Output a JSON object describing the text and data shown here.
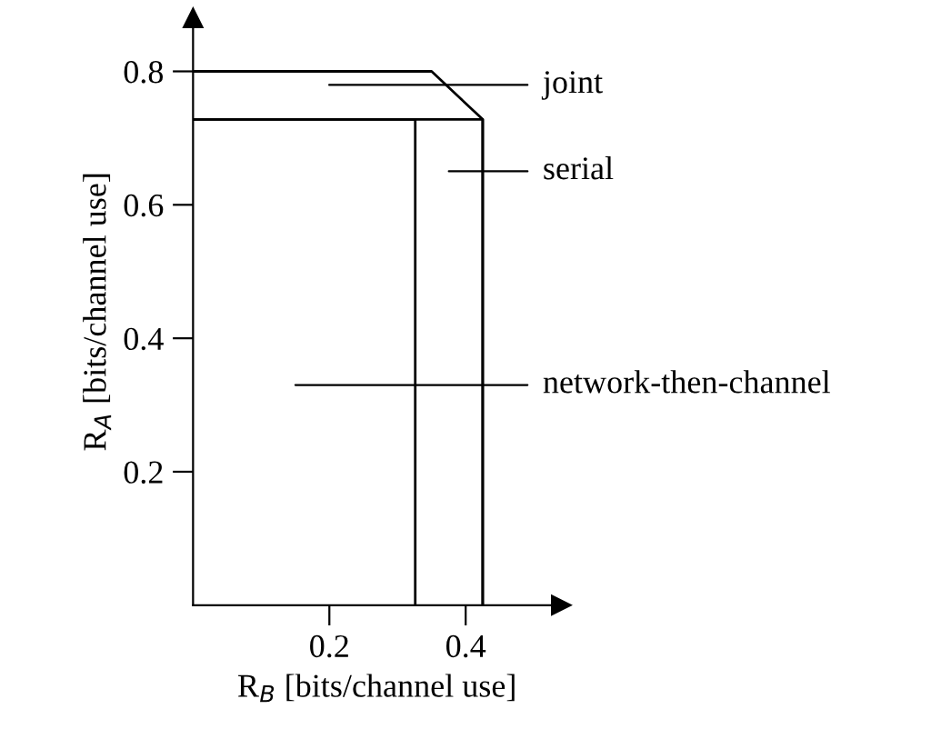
{
  "chart_data": {
    "type": "line",
    "xlabel": "R$_{B}$ [bits/channel use]",
    "ylabel": "R$_{A}$ [bits/channel use]",
    "xlim": [
      0,
      0.54
    ],
    "ylim": [
      0,
      0.88
    ],
    "xticks": [
      0.2,
      0.4
    ],
    "yticks": [
      0.2,
      0.4,
      0.6,
      0.8
    ],
    "grid": false,
    "legend": "right",
    "marker": "none",
    "line_style": "solid",
    "series": [
      {
        "name": "joint",
        "color": "#000000",
        "x": [
          0,
          0.35,
          0.425,
          0.425
        ],
        "values": [
          0.8,
          0.8,
          0.728,
          0
        ]
      },
      {
        "name": "serial",
        "color": "#000000",
        "x": [
          0,
          0.425,
          0.425
        ],
        "values": [
          0.728,
          0.728,
          0
        ]
      },
      {
        "name": "network-then-channel",
        "color": "#000000",
        "x": [
          0,
          0.326,
          0.326
        ],
        "values": [
          0.728,
          0.728,
          0
        ]
      }
    ]
  }
}
